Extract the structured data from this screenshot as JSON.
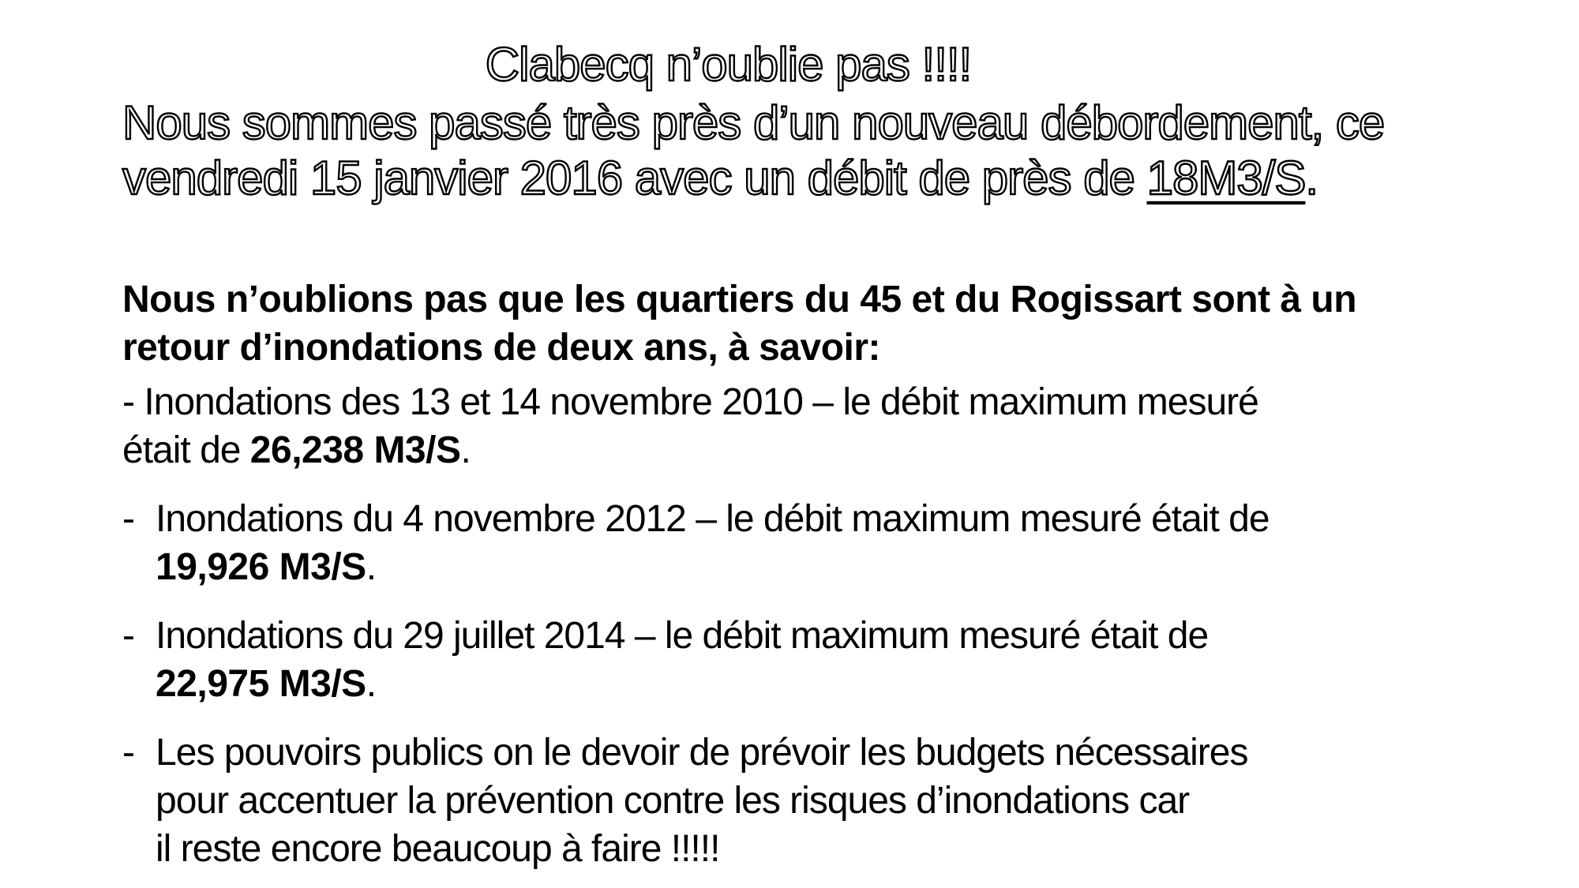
{
  "page": {
    "background_color": "#ffffff",
    "text_color": "#000000",
    "language": "fr"
  },
  "header": {
    "title": "Clabecq n’oublie pas !!!!",
    "subtitle_lines": [
      [
        {
          "text": "Nous sommes passé très près d’un nouveau débordement, ce"
        }
      ],
      [
        {
          "text": "vendredi 15 janvier 2016 avec un débit de près de "
        },
        {
          "text": "18M3/S",
          "underline": true
        },
        {
          "text": "."
        }
      ]
    ]
  },
  "body": {
    "paragraphs": [
      {
        "style": "intro",
        "lines": [
          [
            {
              "text": "Nous n’oublions pas que les quartiers du 45 et du Rogissart sont à un",
              "bold": true
            }
          ],
          [
            {
              "text": "retour d’inondations de deux ans, à savoir:",
              "bold": true
            }
          ]
        ]
      },
      {
        "style": "flush",
        "lines": [
          [
            {
              "text": "- Inondations des 13 et 14 novembre 2010 – le débit maximum mesuré"
            }
          ],
          [
            {
              "text": "était de "
            },
            {
              "text": "26,238 M3/S",
              "bold": true
            },
            {
              "text": "."
            }
          ]
        ]
      },
      {
        "style": "hanging",
        "dash": "-",
        "lines": [
          [
            {
              "text": "Inondations du 4 novembre 2012 – le débit maximum mesuré était de"
            }
          ],
          [
            {
              "text": "19,926 M3/S",
              "bold": true
            },
            {
              "text": "."
            }
          ]
        ]
      },
      {
        "style": "hanging",
        "dash": "-",
        "lines": [
          [
            {
              "text": "Inondations du 29 juillet 2014 – le débit maximum mesuré était de"
            }
          ],
          [
            {
              "text": "22,975 M3/S",
              "bold": true
            },
            {
              "text": "."
            }
          ]
        ]
      },
      {
        "style": "hanging",
        "dash": "-",
        "lines": [
          [
            {
              "text": "Les pouvoirs publics on le devoir de prévoir les budgets nécessaires"
            }
          ],
          [
            {
              "text": "pour accentuer la prévention contre les risques d’inondations car"
            }
          ],
          [
            {
              "text": "il reste encore beaucoup à faire !!!!!"
            }
          ]
        ]
      }
    ]
  }
}
